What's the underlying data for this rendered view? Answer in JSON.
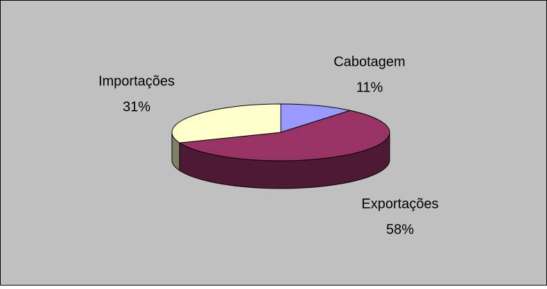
{
  "chart_data": {
    "type": "pie",
    "categories": [
      "Cabotagem",
      "Exportações",
      "Importações"
    ],
    "values": [
      11,
      58,
      31
    ],
    "value_labels": [
      "11%",
      "58%",
      "31%"
    ],
    "colors": [
      "#9999ff",
      "#993366",
      "#ffffcc"
    ],
    "side_colors": [
      "#4c4c80",
      "#4d1933",
      "#808066"
    ]
  }
}
